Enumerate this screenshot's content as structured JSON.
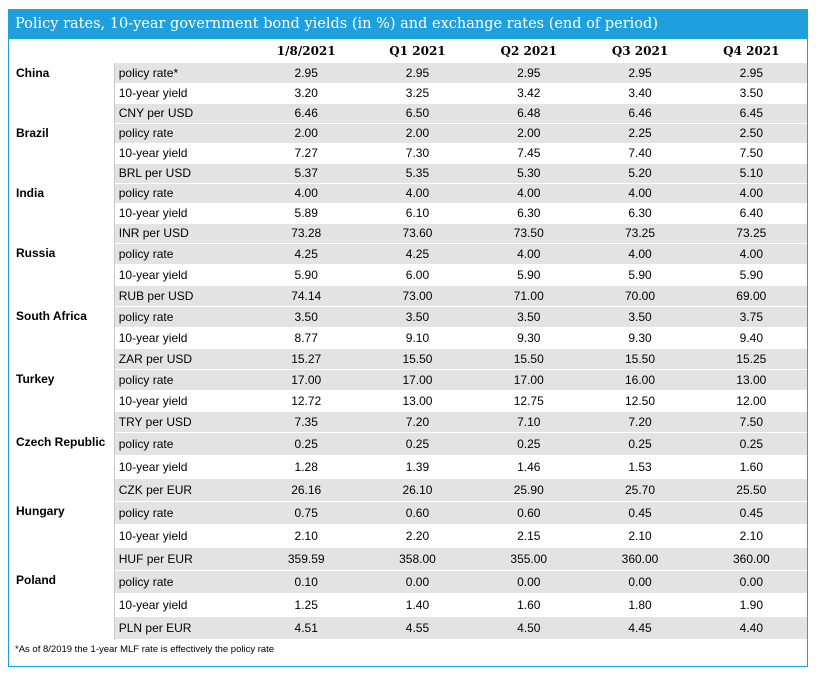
{
  "title": "Policy rates, 10-year government bond yields (in %) and exchange rates (end of period)",
  "columns": [
    "1/8/2021",
    "Q1 2021",
    "Q2 2021",
    "Q3 2021",
    "Q4 2021"
  ],
  "groups": [
    {
      "country": "China",
      "row_height": 20,
      "rows": [
        {
          "metric": "policy rate*",
          "values": [
            "2.95",
            "2.95",
            "2.95",
            "2.95",
            "2.95"
          ]
        },
        {
          "metric": "10-year yield",
          "values": [
            "3.20",
            "3.25",
            "3.42",
            "3.40",
            "3.50"
          ]
        },
        {
          "metric": "CNY per USD",
          "values": [
            "6.46",
            "6.50",
            "6.48",
            "6.46",
            "6.45"
          ]
        }
      ]
    },
    {
      "country": "Brazil",
      "row_height": 20,
      "rows": [
        {
          "metric": "policy rate",
          "values": [
            "2.00",
            "2.00",
            "2.00",
            "2.25",
            "2.50"
          ]
        },
        {
          "metric": "10-year yield",
          "values": [
            "7.27",
            "7.30",
            "7.45",
            "7.40",
            "7.50"
          ]
        },
        {
          "metric": "BRL per USD",
          "values": [
            "5.37",
            "5.35",
            "5.30",
            "5.20",
            "5.10"
          ]
        }
      ]
    },
    {
      "country": "India",
      "row_height": 20,
      "rows": [
        {
          "metric": "policy rate",
          "values": [
            "4.00",
            "4.00",
            "4.00",
            "4.00",
            "4.00"
          ]
        },
        {
          "metric": "10-year yield",
          "values": [
            "5.89",
            "6.10",
            "6.30",
            "6.30",
            "6.40"
          ]
        },
        {
          "metric": "INR per USD",
          "values": [
            "73.28",
            "73.60",
            "73.50",
            "73.25",
            "73.25"
          ]
        }
      ]
    },
    {
      "country": "Russia",
      "row_height": 21,
      "rows": [
        {
          "metric": "policy rate",
          "values": [
            "4.25",
            "4.25",
            "4.00",
            "4.00",
            "4.00"
          ]
        },
        {
          "metric": "10-year yield",
          "values": [
            "5.90",
            "6.00",
            "5.90",
            "5.90",
            "5.90"
          ]
        },
        {
          "metric": "RUB per USD",
          "values": [
            "74.14",
            "73.00",
            "71.00",
            "70.00",
            "69.00"
          ]
        }
      ]
    },
    {
      "country": "South Africa",
      "row_height": 21,
      "rows": [
        {
          "metric": "policy rate",
          "values": [
            "3.50",
            "3.50",
            "3.50",
            "3.50",
            "3.75"
          ]
        },
        {
          "metric": "10-year yield",
          "values": [
            "8.77",
            "9.10",
            "9.30",
            "9.30",
            "9.40"
          ]
        },
        {
          "metric": "ZAR per USD",
          "values": [
            "15.27",
            "15.50",
            "15.50",
            "15.50",
            "15.25"
          ]
        }
      ]
    },
    {
      "country": "Turkey",
      "row_height": 21,
      "rows": [
        {
          "metric": "policy rate",
          "values": [
            "17.00",
            "17.00",
            "17.00",
            "16.00",
            "13.00"
          ]
        },
        {
          "metric": "10-year yield",
          "values": [
            "12.72",
            "13.00",
            "12.75",
            "12.50",
            "12.00"
          ]
        },
        {
          "metric": "TRY per USD",
          "values": [
            "7.35",
            "7.20",
            "7.10",
            "7.20",
            "7.50"
          ]
        }
      ]
    },
    {
      "country": "Czech Republic",
      "row_height": 23,
      "rows": [
        {
          "metric": "policy rate",
          "values": [
            "0.25",
            "0.25",
            "0.25",
            "0.25",
            "0.25"
          ]
        },
        {
          "metric": "10-year yield",
          "values": [
            "1.28",
            "1.39",
            "1.46",
            "1.53",
            "1.60"
          ]
        },
        {
          "metric": "CZK per EUR",
          "values": [
            "26.16",
            "26.10",
            "25.90",
            "25.70",
            "25.50"
          ]
        }
      ]
    },
    {
      "country": "Hungary",
      "row_height": 23,
      "rows": [
        {
          "metric": "policy rate",
          "values": [
            "0.75",
            "0.60",
            "0.60",
            "0.45",
            "0.45"
          ]
        },
        {
          "metric": "10-year yield",
          "values": [
            "2.10",
            "2.20",
            "2.15",
            "2.10",
            "2.10"
          ]
        },
        {
          "metric": "HUF per EUR",
          "values": [
            "359.59",
            "358.00",
            "355.00",
            "360.00",
            "360.00"
          ]
        }
      ]
    },
    {
      "country": "Poland",
      "row_height": 23,
      "rows": [
        {
          "metric": "policy rate",
          "values": [
            "0.10",
            "0.00",
            "0.00",
            "0.00",
            "0.00"
          ]
        },
        {
          "metric": "10-year yield",
          "values": [
            "1.25",
            "1.40",
            "1.60",
            "1.80",
            "1.90"
          ]
        },
        {
          "metric": "PLN per EUR",
          "values": [
            "4.51",
            "4.55",
            "4.50",
            "4.45",
            "4.40"
          ]
        }
      ]
    }
  ],
  "footnote": "*As of 8/2019 the 1-year MLF rate is effectively the policy rate"
}
